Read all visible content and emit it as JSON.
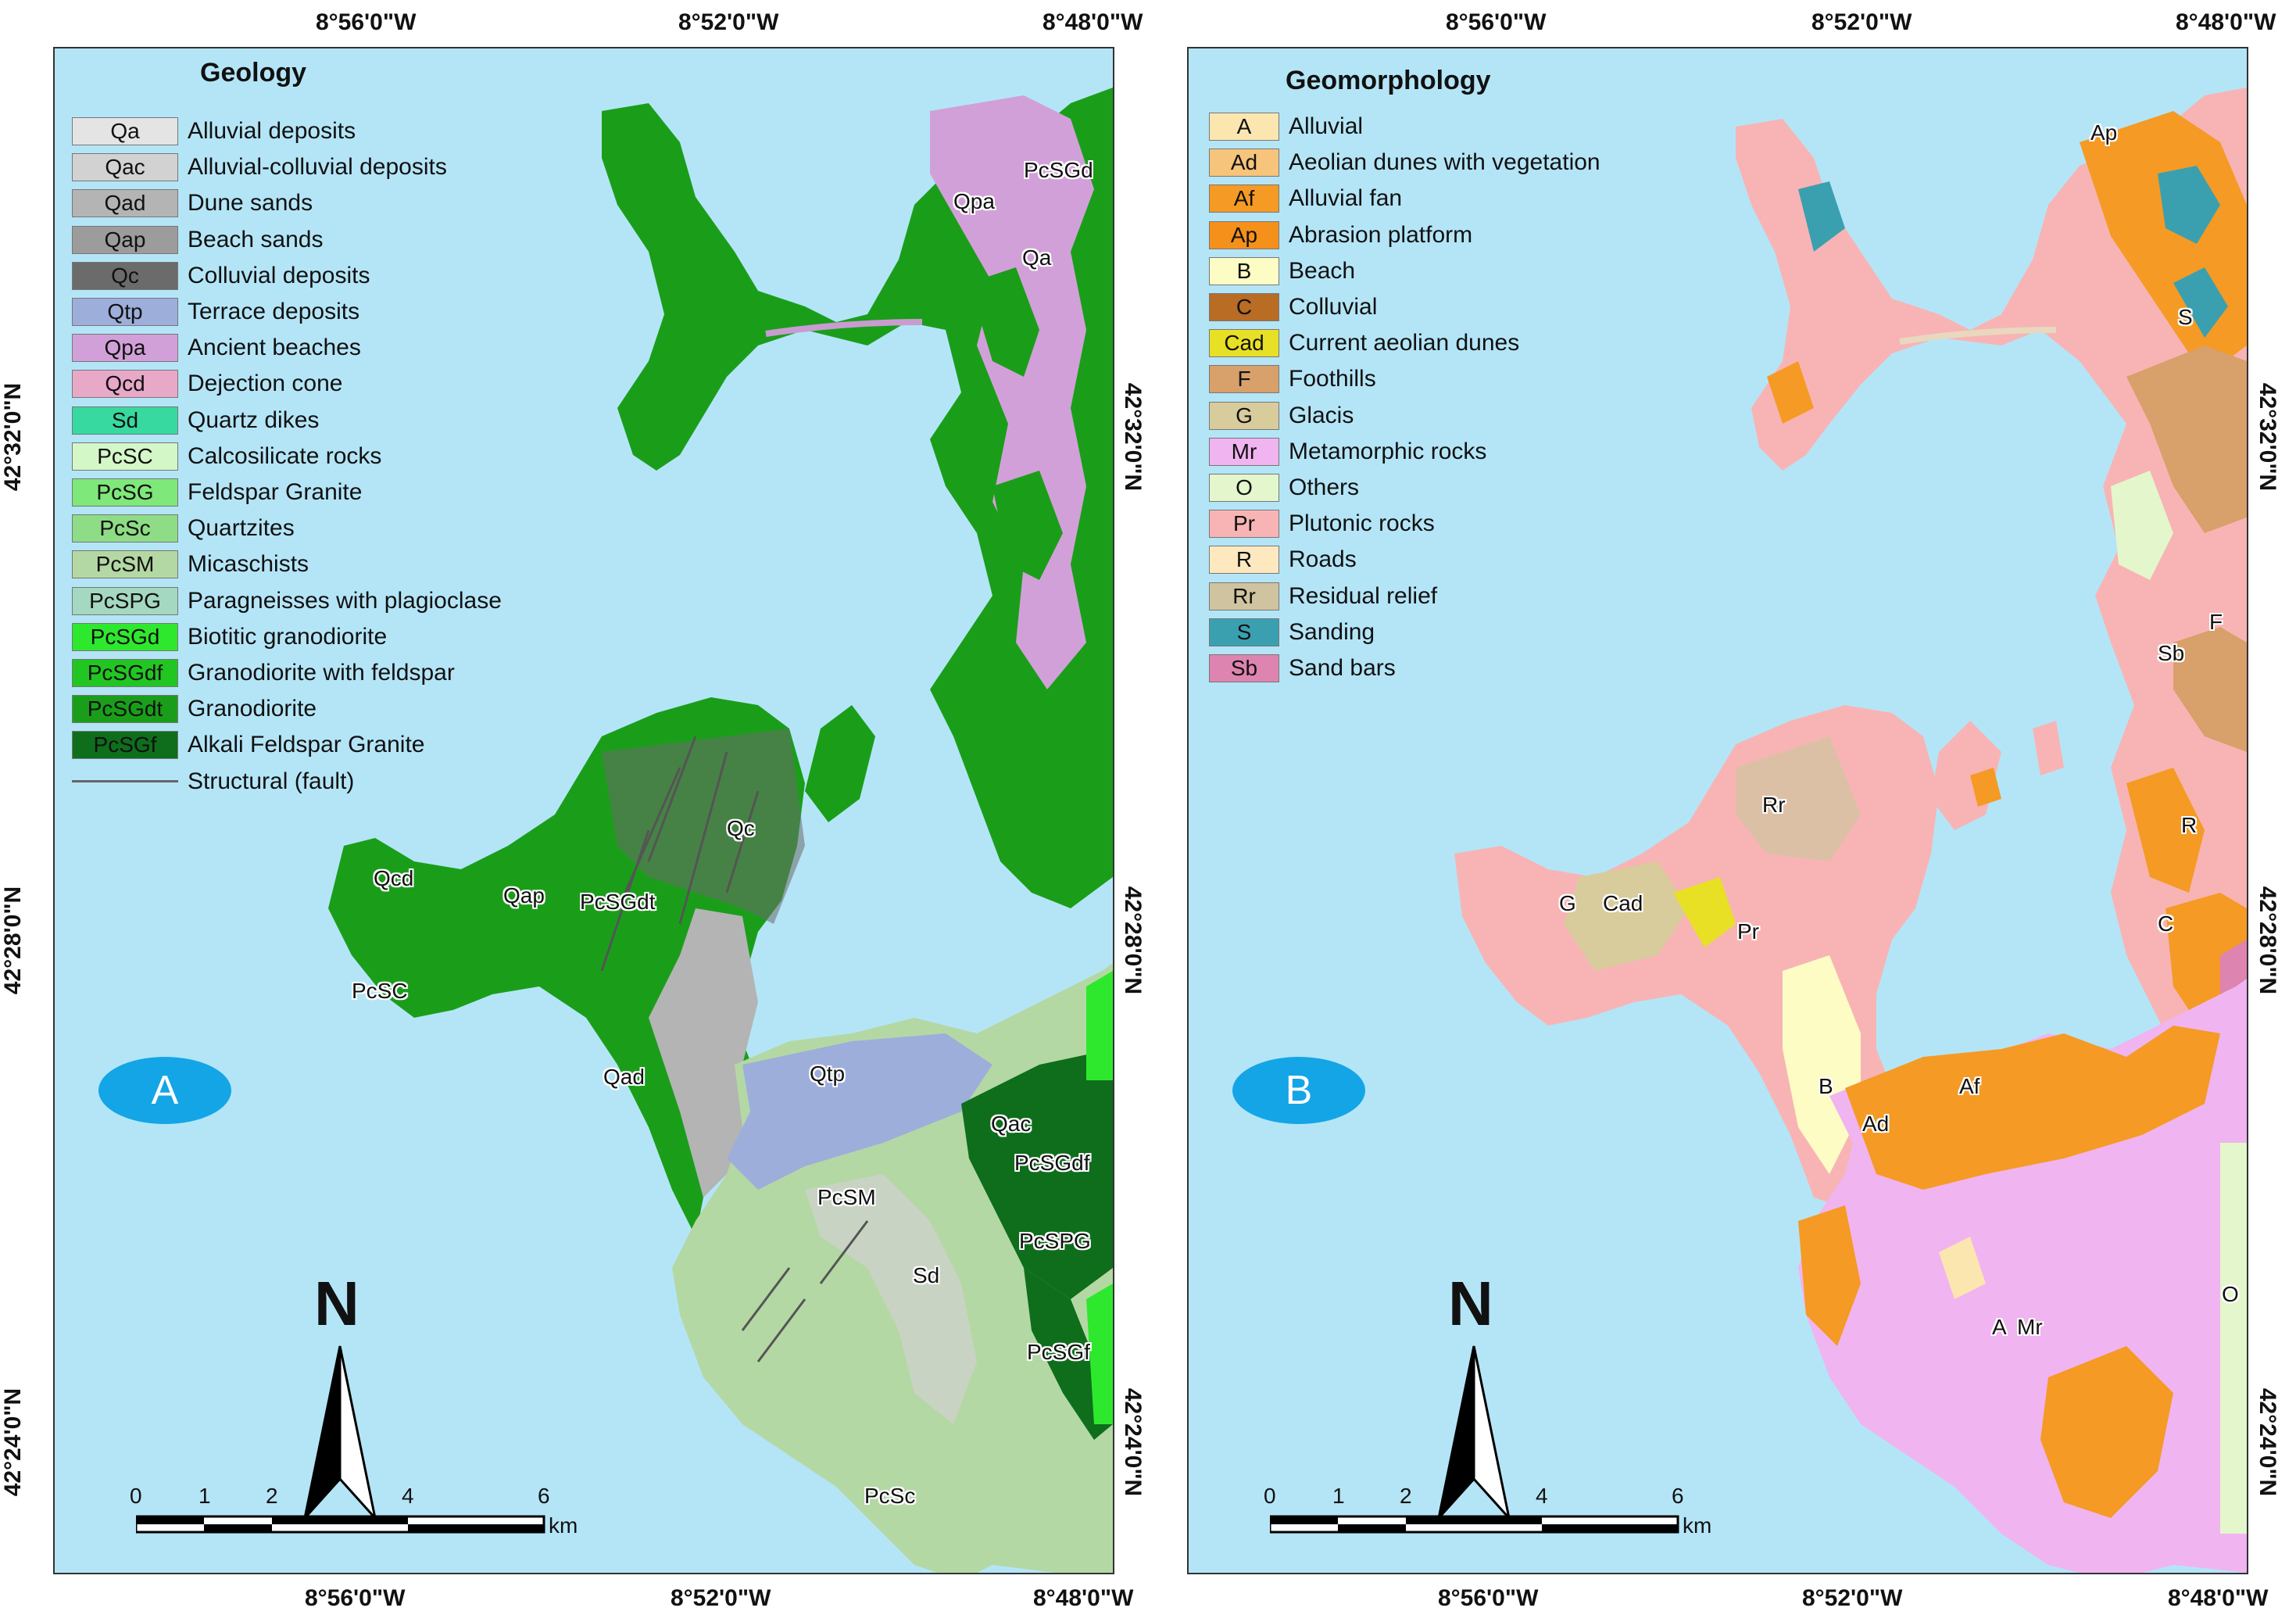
{
  "coords": {
    "top": [
      "8°56'0\"W",
      "8°52'0\"W",
      "8°48'0\"W"
    ],
    "bottom": [
      "8°56'0\"W",
      "8°52'0\"W",
      "8°48'0\"W"
    ],
    "left": [
      "42°32'0\"N",
      "42°28'0\"N",
      "42°24'0\"N"
    ],
    "right": [
      "42°32'0\"N",
      "42°28'0\"N",
      "42°24'0\"N"
    ]
  },
  "panel_a": {
    "badge": "A",
    "legend_title": "Geology",
    "legend": [
      {
        "code": "Qa",
        "label": "Alluvial deposits",
        "color": "#e4e4e4"
      },
      {
        "code": "Qac",
        "label": "Alluvial-colluvial deposits",
        "color": "#d2d2d2"
      },
      {
        "code": "Qad",
        "label": "Dune sands",
        "color": "#b4b4b4"
      },
      {
        "code": "Qap",
        "label": "Beach sands",
        "color": "#9c9c9c"
      },
      {
        "code": "Qc",
        "label": "Colluvial deposits",
        "color": "#6b6b6b"
      },
      {
        "code": "Qtp",
        "label": "Terrace deposits",
        "color": "#9eaedb"
      },
      {
        "code": "Qpa",
        "label": "Ancient beaches",
        "color": "#d2a0d8"
      },
      {
        "code": "Qcd",
        "label": "Dejection cone",
        "color": "#e8a8c8"
      },
      {
        "code": "Sd",
        "label": "Quartz dikes",
        "color": "#38d9a0"
      },
      {
        "code": "PcSC",
        "label": "Calcosilicate rocks",
        "color": "#d4f7c8"
      },
      {
        "code": "PcSG",
        "label": "Feldspar Granite",
        "color": "#7fe87a"
      },
      {
        "code": "PcSc",
        "label": "Quartzites",
        "color": "#8edc86"
      },
      {
        "code": "PcSM",
        "label": "Micaschists",
        "color": "#b4d8a4"
      },
      {
        "code": "PcSPG",
        "label": "Paragneisses with plagioclase",
        "color": "#a4d8c0"
      },
      {
        "code": "PcSGd",
        "label": "Biotitic granodiorite",
        "color": "#2ee82e"
      },
      {
        "code": "PcSGdf",
        "label": "Granodiorite with feldspar",
        "color": "#22c622"
      },
      {
        "code": "PcSGdt",
        "label": "Granodiorite",
        "color": "#1a9e1a"
      },
      {
        "code": "PcSGf",
        "label": "Alkali Feldspar Granite",
        "color": "#0e6e1c"
      }
    ],
    "fault_label": "Structural (fault)",
    "fault_color": "#666666",
    "map_labels": [
      "PcSGd",
      "Qpa",
      "Qa",
      "Qc",
      "Qcd",
      "Qap",
      "PcSGdt",
      "PcSC",
      "Qad",
      "Qtp",
      "Qac",
      "PcSGdf",
      "PcSM",
      "PcSPG",
      "Sd",
      "PcSGf",
      "PcSc"
    ]
  },
  "panel_b": {
    "badge": "B",
    "legend_title": "Geomorphology",
    "legend": [
      {
        "code": "A",
        "label": "Alluvial",
        "color": "#fce6b0"
      },
      {
        "code": "Ad",
        "label": "Aeolian dunes with vegetation",
        "color": "#f6c47a"
      },
      {
        "code": "Af",
        "label": "Alluvial fan",
        "color": "#f59a24"
      },
      {
        "code": "Ap",
        "label": "Abrasion platform",
        "color": "#f5901a"
      },
      {
        "code": "B",
        "label": "Beach",
        "color": "#fcfcc4"
      },
      {
        "code": "C",
        "label": "Colluvial",
        "color": "#b86c24"
      },
      {
        "code": "Cad",
        "label": "Current aeolian dunes",
        "color": "#e8e024"
      },
      {
        "code": "F",
        "label": "Foothills",
        "color": "#d8a06a"
      },
      {
        "code": "G",
        "label": "Glacis",
        "color": "#d8cc9c"
      },
      {
        "code": "Mr",
        "label": "Metamorphic rocks",
        "color": "#f0b4f0"
      },
      {
        "code": "O",
        "label": "Others",
        "color": "#e4f6cc"
      },
      {
        "code": "Pr",
        "label": "Plutonic rocks",
        "color": "#f8b4b4"
      },
      {
        "code": "R",
        "label": "Roads",
        "color": "#fde8c0"
      },
      {
        "code": "Rr",
        "label": "Residual relief",
        "color": "#d0c4a0"
      },
      {
        "code": "S",
        "label": "Sanding",
        "color": "#3aa0b0"
      },
      {
        "code": "Sb",
        "label": "Sand bars",
        "color": "#de84b0"
      }
    ],
    "map_labels": [
      "Ap",
      "S",
      "F",
      "Sb",
      "R",
      "C",
      "Rr",
      "G",
      "Cad",
      "Pr",
      "B",
      "Ad",
      "Af",
      "A",
      "Mr",
      "O"
    ]
  },
  "north_label": "N",
  "scale": {
    "ticks": [
      "0",
      "1",
      "2",
      "4",
      "6"
    ],
    "unit": "km"
  }
}
